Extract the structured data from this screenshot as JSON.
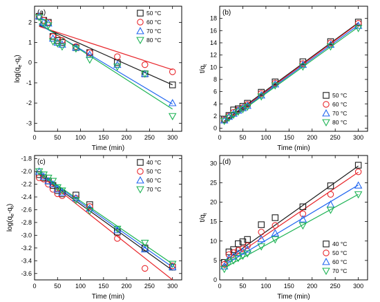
{
  "colors": {
    "s0": "#1a1a1a",
    "s1": "#e8262b",
    "s2": "#2166f0",
    "s3": "#1db354"
  },
  "chart_data": [
    {
      "type": "scatter",
      "panel_label": "(a)",
      "xlabel": "Time (min)",
      "ylabel_main": "log(q",
      "ylabel_sub1": "e",
      "ylabel_mid": "-q",
      "ylabel_sub2": "t",
      "ylabel_end": ")",
      "xlim": [
        0,
        320
      ],
      "ylim": [
        -3.4,
        2.8
      ],
      "xticks": [
        "0",
        "50",
        "100",
        "150",
        "200",
        "250",
        "300"
      ],
      "yticks": [
        {
          "v": -3,
          "label": "-3"
        },
        {
          "v": -2,
          "label": "-2"
        },
        {
          "v": -1,
          "label": "-1"
        },
        {
          "v": 0,
          "label": "0"
        },
        {
          "v": 1,
          "label": "1"
        },
        {
          "v": 2,
          "label": "2"
        }
      ],
      "legend_position": "top-right",
      "series": [
        {
          "name": "50 °C",
          "marker": "square",
          "color": "#1a1a1a",
          "x": [
            10,
            20,
            30,
            40,
            50,
            60,
            90,
            120,
            180,
            240,
            300
          ],
          "y": [
            2.3,
            2.1,
            2.0,
            1.3,
            1.1,
            1.0,
            0.75,
            0.5,
            0.0,
            -0.55,
            -1.1
          ],
          "fit": [
            [
              10,
              1.85
            ],
            [
              300,
              -1.1
            ]
          ]
        },
        {
          "name": "60 °C",
          "marker": "circle",
          "color": "#e8262b",
          "x": [
            10,
            20,
            30,
            40,
            50,
            60,
            90,
            120,
            180,
            240,
            300
          ],
          "y": [
            2.3,
            2.1,
            2.0,
            1.3,
            1.2,
            1.1,
            0.8,
            0.5,
            0.3,
            -0.1,
            -0.45
          ],
          "fit": [
            [
              10,
              1.8
            ],
            [
              300,
              -0.35
            ]
          ]
        },
        {
          "name": "70 °C",
          "marker": "triangle-up",
          "color": "#2166f0",
          "x": [
            10,
            20,
            30,
            40,
            50,
            60,
            90,
            120,
            180,
            240,
            300
          ],
          "y": [
            2.3,
            2.0,
            1.95,
            1.2,
            1.0,
            0.9,
            0.75,
            0.4,
            -0.1,
            -0.55,
            -2.0
          ],
          "fit": [
            [
              10,
              1.9
            ],
            [
              300,
              -2.05
            ]
          ]
        },
        {
          "name": "80 °C",
          "marker": "triangle-down",
          "color": "#1db354",
          "x": [
            10,
            20,
            30,
            40,
            50,
            60,
            90,
            120,
            180,
            240,
            300
          ],
          "y": [
            2.25,
            2.0,
            1.85,
            1.05,
            0.95,
            0.8,
            0.7,
            0.15,
            -0.2,
            -0.55,
            -2.65
          ],
          "fit": [
            [
              10,
              1.95
            ],
            [
              300,
              -2.3
            ]
          ]
        }
      ]
    },
    {
      "type": "scatter",
      "panel_label": "(b)",
      "xlabel": "Time (min)",
      "ylabel_main": "t/q",
      "ylabel_sub1": "t",
      "xlim": [
        0,
        320
      ],
      "ylim": [
        -0.5,
        20
      ],
      "xticks": [
        "0",
        "50",
        "100",
        "150",
        "200",
        "250",
        "300"
      ],
      "yticks": [
        {
          "v": 0,
          "label": "0"
        },
        {
          "v": 2,
          "label": "2"
        },
        {
          "v": 4,
          "label": "4"
        },
        {
          "v": 6,
          "label": "6"
        },
        {
          "v": 8,
          "label": "8"
        },
        {
          "v": 10,
          "label": "10"
        },
        {
          "v": 12,
          "label": "12"
        },
        {
          "v": 14,
          "label": "14"
        },
        {
          "v": 16,
          "label": "16"
        },
        {
          "v": 18,
          "label": "18"
        }
      ],
      "legend_position": "bottom-right",
      "series": [
        {
          "name": "50 °C",
          "marker": "square",
          "color": "#1a1a1a",
          "x": [
            10,
            20,
            30,
            40,
            50,
            60,
            90,
            120,
            180,
            240,
            300
          ],
          "y": [
            1.5,
            2.1,
            3.0,
            3.2,
            3.6,
            4.1,
            5.9,
            7.6,
            10.9,
            14.2,
            17.4
          ],
          "fit": [
            [
              10,
              1.2
            ],
            [
              300,
              17.3
            ]
          ]
        },
        {
          "name": "60 °C",
          "marker": "circle",
          "color": "#e8262b",
          "x": [
            10,
            20,
            30,
            40,
            50,
            60,
            90,
            120,
            180,
            240,
            300
          ],
          "y": [
            1.4,
            2.0,
            2.6,
            3.0,
            3.4,
            3.9,
            5.7,
            7.4,
            10.6,
            14.0,
            17.2
          ],
          "fit": [
            [
              10,
              1.0
            ],
            [
              300,
              17.2
            ]
          ]
        },
        {
          "name": "70 °C",
          "marker": "triangle-up",
          "color": "#2166f0",
          "x": [
            10,
            20,
            30,
            40,
            50,
            60,
            90,
            120,
            180,
            240,
            300
          ],
          "y": [
            1.3,
            1.9,
            2.4,
            2.9,
            3.3,
            3.7,
            5.4,
            7.2,
            10.4,
            13.7,
            16.8
          ],
          "fit": [
            [
              10,
              0.9
            ],
            [
              300,
              16.9
            ]
          ]
        },
        {
          "name": "80 °C",
          "marker": "triangle-down",
          "color": "#1db354",
          "x": [
            10,
            20,
            30,
            40,
            50,
            60,
            90,
            120,
            180,
            240,
            300
          ],
          "y": [
            1.2,
            1.7,
            2.2,
            2.7,
            3.1,
            3.5,
            5.2,
            7.0,
            10.1,
            13.4,
            16.4
          ],
          "fit": [
            [
              10,
              0.8
            ],
            [
              300,
              16.6
            ]
          ]
        }
      ]
    },
    {
      "type": "scatter",
      "panel_label": "(c)",
      "xlabel": "Time (min)",
      "ylabel_main": "log(q",
      "ylabel_sub1": "e",
      "ylabel_mid": "-q",
      "ylabel_sub2": "t",
      "ylabel_end": ")",
      "xlim": [
        0,
        320
      ],
      "ylim": [
        -3.7,
        -1.75
      ],
      "xticks": [
        "0",
        "50",
        "100",
        "150",
        "200",
        "250",
        "300"
      ],
      "yticks": [
        {
          "v": -3.6,
          "label": "-3.6"
        },
        {
          "v": -3.4,
          "label": "-3.4"
        },
        {
          "v": -3.2,
          "label": "-3.2"
        },
        {
          "v": -3.0,
          "label": "-3.0"
        },
        {
          "v": -2.8,
          "label": "-2.8"
        },
        {
          "v": -2.6,
          "label": "-2.6"
        },
        {
          "v": -2.4,
          "label": "-2.4"
        },
        {
          "v": -2.2,
          "label": "-2.2"
        },
        {
          "v": -2.0,
          "label": "-2.0"
        },
        {
          "v": -1.8,
          "label": "-1.8"
        }
      ],
      "legend_position": "top-right",
      "series": [
        {
          "name": "40 °C",
          "marker": "square",
          "color": "#1a1a1a",
          "x": [
            10,
            20,
            30,
            40,
            50,
            60,
            90,
            120,
            180,
            240,
            300
          ],
          "y": [
            -2.05,
            -2.1,
            -2.15,
            -2.22,
            -2.3,
            -2.35,
            -2.37,
            -2.52,
            -2.95,
            -3.2,
            -3.5
          ],
          "fit": [
            [
              10,
              -2.05
            ],
            [
              300,
              -3.55
            ]
          ]
        },
        {
          "name": "50 °C",
          "marker": "circle",
          "color": "#e8262b",
          "x": [
            10,
            20,
            30,
            40,
            50,
            60,
            90,
            120,
            180,
            240,
            300
          ],
          "y": [
            -2.1,
            -2.12,
            -2.2,
            -2.28,
            -2.35,
            -2.38,
            -2.42,
            -2.55,
            -3.05,
            -3.52,
            -3.48
          ],
          "fit": [
            [
              10,
              -2.05
            ],
            [
              300,
              -3.7
            ]
          ]
        },
        {
          "name": "60 °C",
          "marker": "triangle-up",
          "color": "#2166f0",
          "x": [
            10,
            20,
            30,
            40,
            50,
            60,
            90,
            120,
            180,
            240,
            300
          ],
          "y": [
            -2.0,
            -2.08,
            -2.15,
            -2.2,
            -2.28,
            -2.33,
            -2.42,
            -2.58,
            -2.92,
            -3.22,
            -3.5
          ],
          "fit": [
            [
              10,
              -2.03
            ],
            [
              300,
              -3.5
            ]
          ]
        },
        {
          "name": "70 °C",
          "marker": "triangle-down",
          "color": "#1db354",
          "x": [
            10,
            20,
            30,
            40,
            50,
            60,
            90,
            120,
            180,
            240,
            300
          ],
          "y": [
            -2.0,
            -2.05,
            -2.1,
            -2.15,
            -2.25,
            -2.3,
            -2.45,
            -2.62,
            -2.9,
            -3.12,
            -3.45
          ],
          "fit": [
            [
              10,
              -2.02
            ],
            [
              300,
              -3.45
            ]
          ]
        }
      ]
    },
    {
      "type": "scatter",
      "panel_label": "(d)",
      "xlabel": "Time (min)",
      "ylabel_main": "t/q",
      "ylabel_sub1": "t",
      "xlim": [
        0,
        320
      ],
      "ylim": [
        0,
        32
      ],
      "xticks": [
        "0",
        "50",
        "100",
        "150",
        "200",
        "250",
        "300"
      ],
      "yticks": [
        {
          "v": 0,
          "label": "0"
        },
        {
          "v": 5,
          "label": "5"
        },
        {
          "v": 10,
          "label": "10"
        },
        {
          "v": 15,
          "label": "15"
        },
        {
          "v": 20,
          "label": "20"
        },
        {
          "v": 25,
          "label": "25"
        },
        {
          "v": 30,
          "label": "30"
        }
      ],
      "legend_position": "bottom-right",
      "series": [
        {
          "name": "40 °C",
          "marker": "square",
          "color": "#1a1a1a",
          "x": [
            10,
            20,
            30,
            40,
            50,
            60,
            90,
            120,
            180,
            240,
            300
          ],
          "y": [
            4.5,
            7.2,
            7.8,
            9.3,
            9.8,
            10.4,
            14.2,
            16.0,
            18.8,
            24.2,
            29.5
          ],
          "fit": [
            [
              10,
              4.8
            ],
            [
              300,
              29.3
            ]
          ]
        },
        {
          "name": "50 °C",
          "marker": "circle",
          "color": "#e8262b",
          "x": [
            10,
            20,
            30,
            40,
            50,
            60,
            90,
            120,
            180,
            240,
            300
          ],
          "y": [
            4.0,
            6.5,
            7.0,
            7.6,
            8.0,
            8.8,
            12.3,
            14.0,
            17.0,
            22.0,
            27.8
          ],
          "fit": [
            [
              10,
              4.3
            ],
            [
              300,
              27.7
            ]
          ]
        },
        {
          "name": "60 °C",
          "marker": "triangle-up",
          "color": "#2166f0",
          "x": [
            10,
            20,
            30,
            40,
            50,
            60,
            90,
            120,
            180,
            240,
            300
          ],
          "y": [
            3.5,
            5.5,
            6.0,
            6.8,
            7.3,
            7.8,
            10.5,
            12.0,
            15.6,
            19.4,
            24.3
          ],
          "fit": [
            [
              10,
              3.8
            ],
            [
              300,
              24.4
            ]
          ]
        },
        {
          "name": "70 °C",
          "marker": "triangle-down",
          "color": "#1db354",
          "x": [
            10,
            20,
            30,
            40,
            50,
            60,
            90,
            120,
            180,
            240,
            300
          ],
          "y": [
            2.8,
            4.5,
            5.0,
            5.6,
            6.2,
            6.8,
            8.6,
            10.4,
            14.0,
            18.0,
            22.0
          ],
          "fit": [
            [
              10,
              3.1
            ],
            [
              300,
              22.0
            ]
          ]
        }
      ]
    }
  ]
}
